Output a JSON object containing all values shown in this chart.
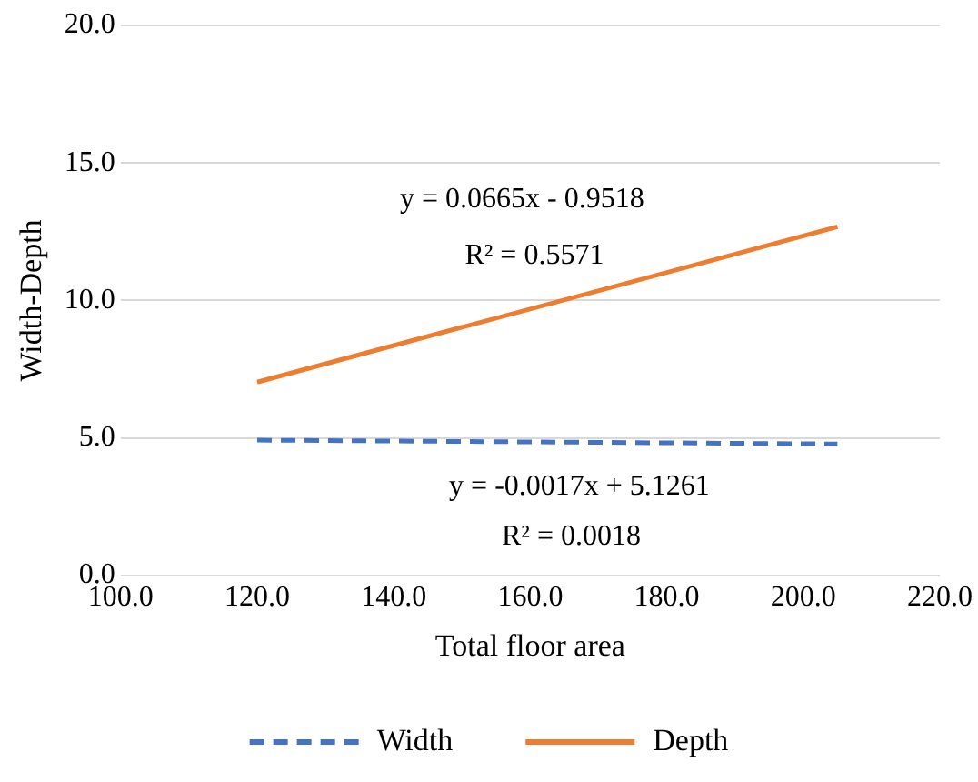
{
  "chart_data": {
    "type": "line",
    "xlabel": "Total floor area",
    "ylabel": "Width-Depth",
    "series": [
      {
        "name": "Width",
        "color": "#4472c4",
        "line_style": "dashed",
        "values": [
          4.92,
          4.78
        ]
      },
      {
        "name": "Depth",
        "color": "#ed7d31",
        "line_style": "solid",
        "values": [
          7.03,
          12.68
        ]
      }
    ],
    "x": [
      120,
      205
    ],
    "xlim": [
      100,
      220
    ],
    "xticks": [
      {
        "value": 100,
        "label": "100.0"
      },
      {
        "value": 120,
        "label": "120.0"
      },
      {
        "value": 140,
        "label": "140.0"
      },
      {
        "value": 160,
        "label": "160.0"
      },
      {
        "value": 180,
        "label": "180.0"
      },
      {
        "value": 200,
        "label": "200.0"
      },
      {
        "value": 220,
        "label": "220.0"
      }
    ],
    "ylim": [
      0,
      20
    ],
    "yticks": [
      {
        "value": 0,
        "label": "0.0"
      },
      {
        "value": 5,
        "label": "5.0"
      },
      {
        "value": 10,
        "label": "10.0"
      },
      {
        "value": 15,
        "label": "15.0"
      },
      {
        "value": 20,
        "label": "20.0"
      }
    ],
    "annotations": [
      "y = 0.0665x - 0.9518",
      "R² = 0.5571",
      "y = -0.0017x + 5.1261",
      "R² = 0.0018"
    ],
    "grid": "y",
    "legend": "bottom",
    "marker": "none"
  }
}
